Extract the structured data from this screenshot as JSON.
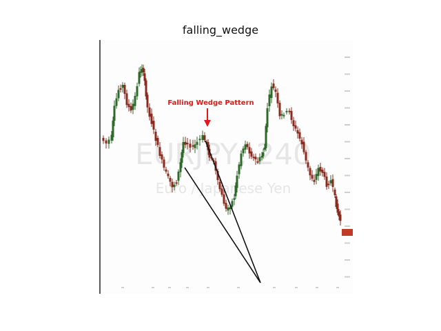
{
  "figure": {
    "title": "falling_wedge"
  },
  "image": {
    "annotation_label": "Falling Wedge Pattern",
    "watermark_symbol": "EURJPY, 240",
    "watermark_name": "Euro / Japanese Yen",
    "colors": {
      "up_candle": "#2e6b2a",
      "down_candle": "#8b2a1f",
      "annotation": "#e01818",
      "wedge_lines": "#111111",
      "price_tag": "#c0392b"
    }
  }
}
